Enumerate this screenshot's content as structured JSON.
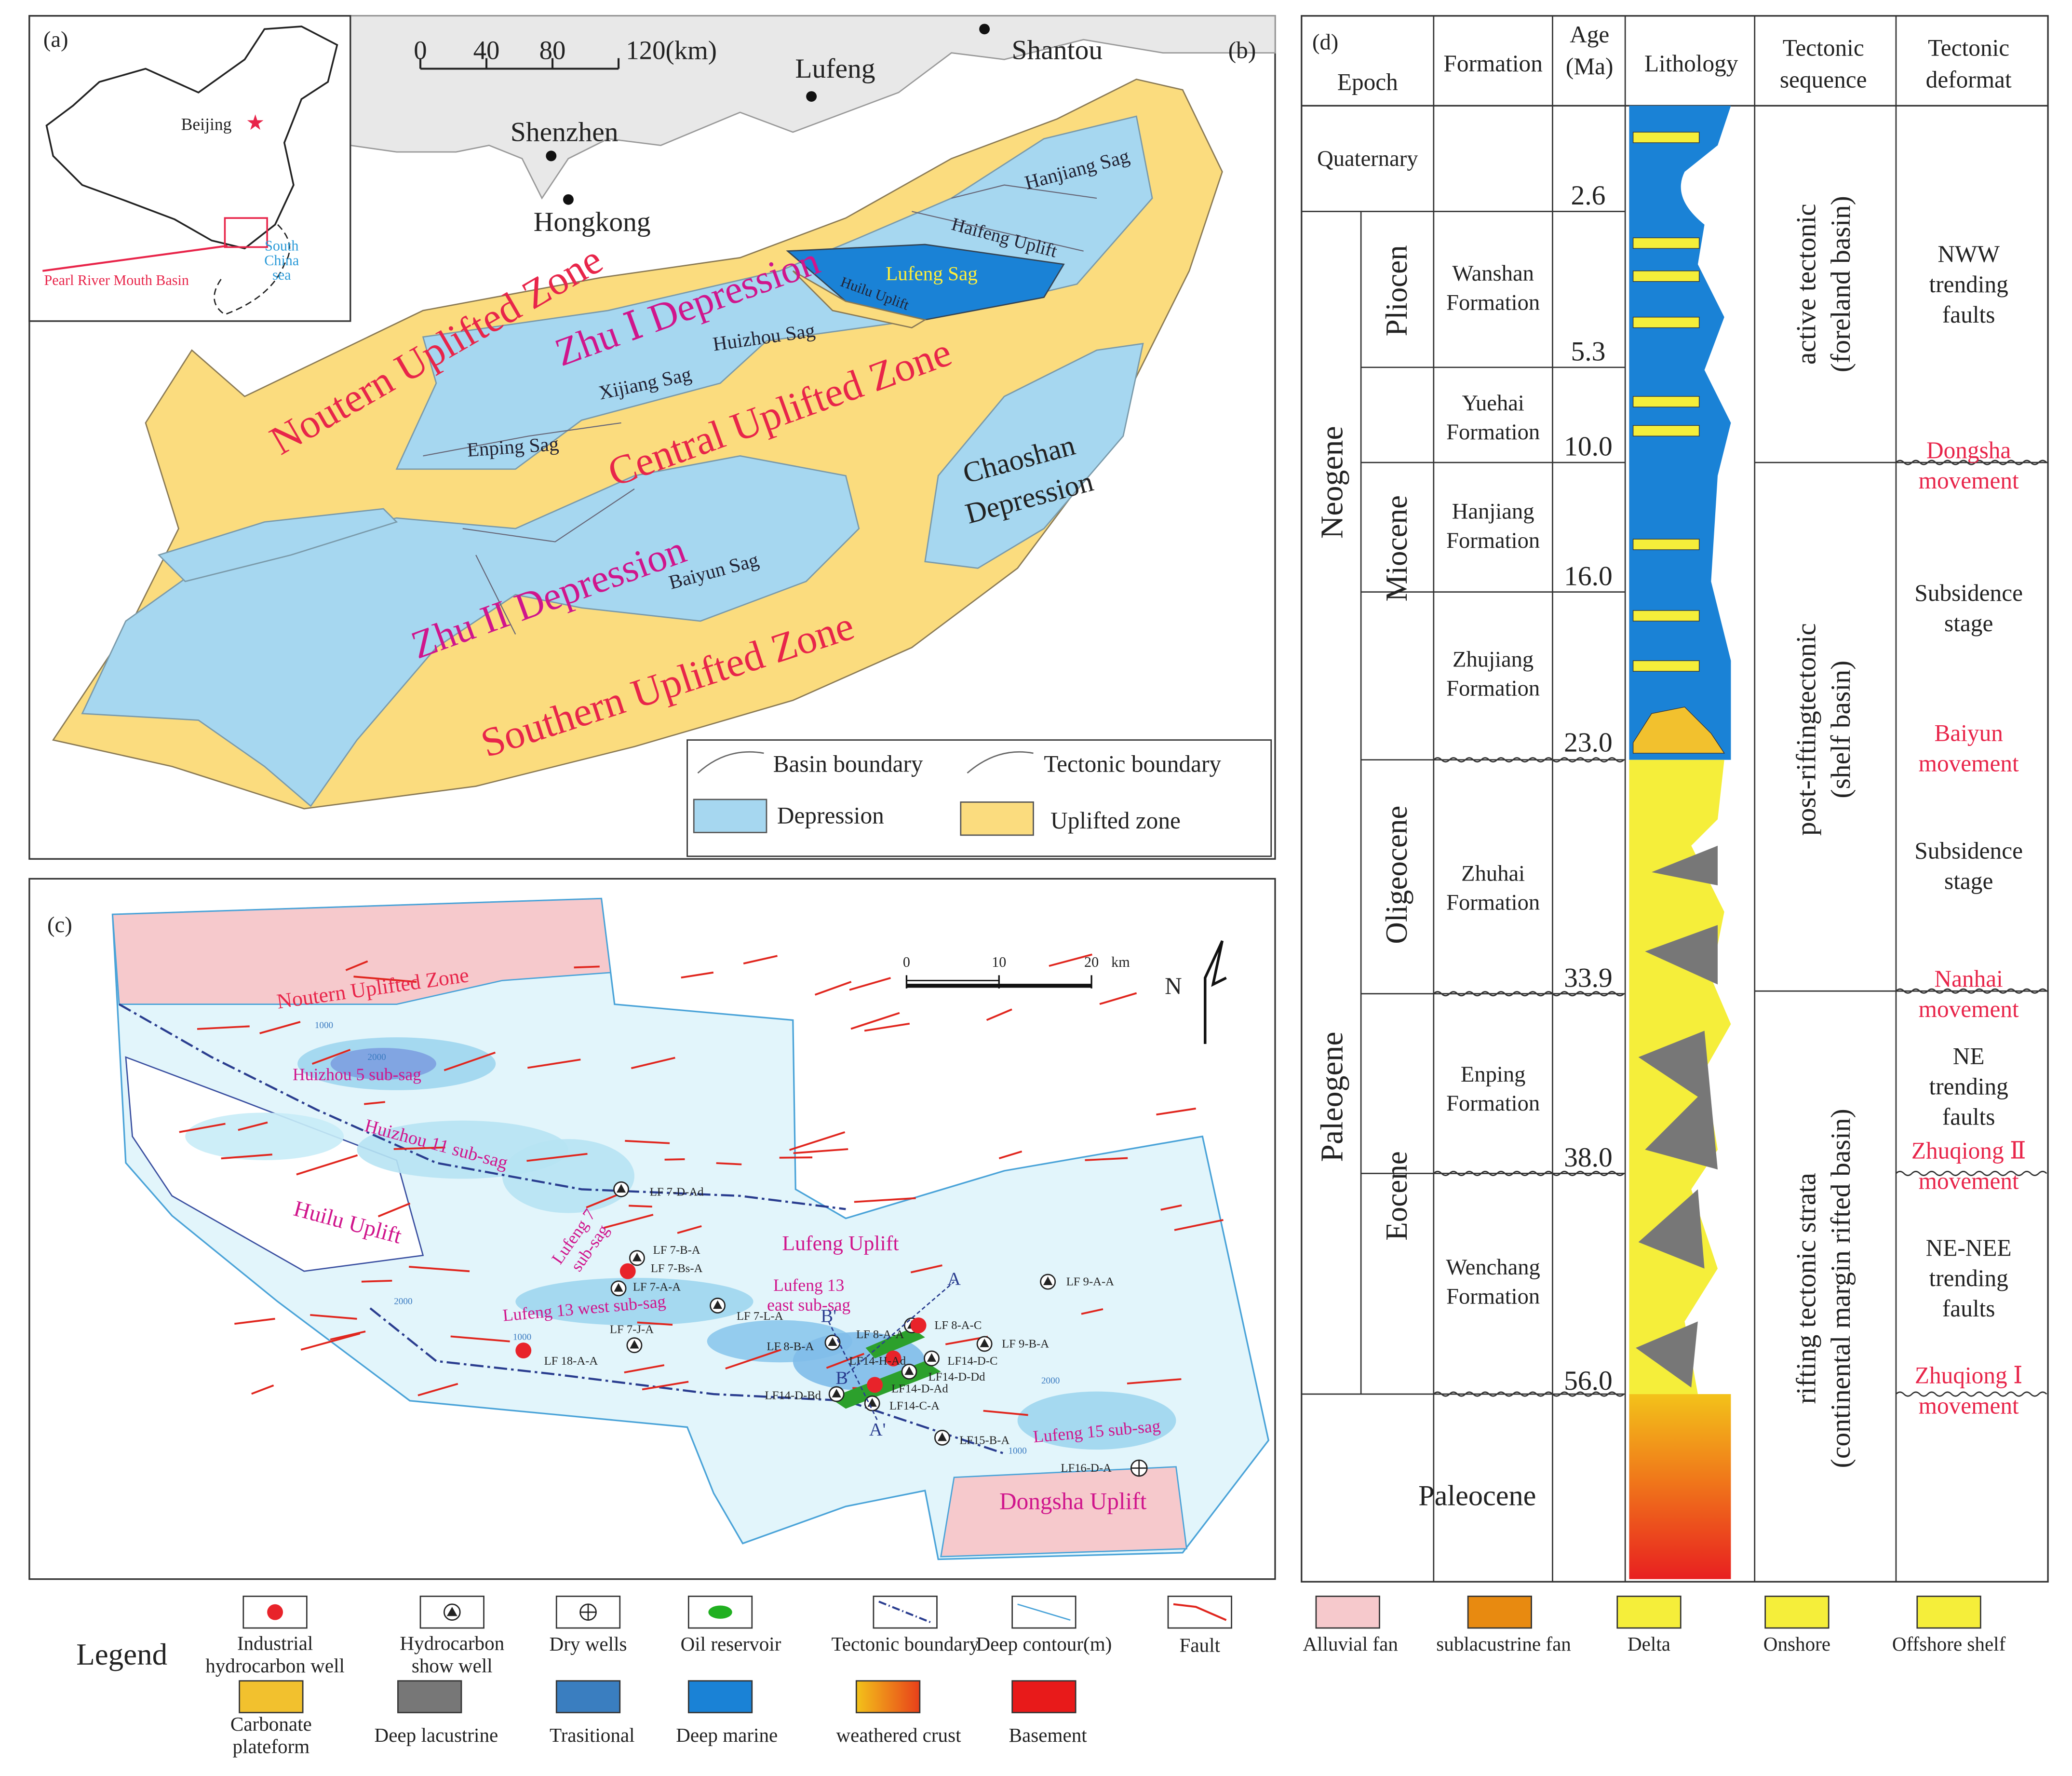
{
  "panel_a": {
    "label": "(a)",
    "capital": "Beijing",
    "basin": "Pearl River Mouth Basin",
    "sea": "South\nChina\nsea"
  },
  "panel_b": {
    "label": "(b)",
    "scale": [
      "0",
      "40",
      "80",
      "120(km)"
    ],
    "cities": [
      "Shantou",
      "Lufeng",
      "Shenzhen",
      "Hongkong"
    ],
    "zones": [
      "Noutern Uplifted Zone",
      "Central Uplifted Zone",
      "Southern Uplifted Zone",
      "Zhu Ⅰ Depression",
      "Zhu II Depression",
      "Chaoshan\nDepression"
    ],
    "sags": [
      "Hanjiang Sag",
      "Haifeng Uplift",
      "Lufeng Sag",
      "Huilu Uplift",
      "Huizhou Sag",
      "Xijiang Sag",
      "Enping Sag",
      "Baiyun Sag"
    ],
    "legend": [
      "Basin boundary",
      "Tectonic boundary",
      "Depression",
      "Uplifted zone"
    ]
  },
  "panel_c": {
    "label": "(c)",
    "scale": [
      "0",
      "10",
      "20",
      "km"
    ],
    "north": "N",
    "areas": [
      "Noutern Uplifted Zone",
      "Huizhou 5 sub-sag",
      "Huizhou 11 sub-sag",
      "Huilu Uplift",
      "Lufeng 7\nsub-sag",
      "Lufeng Uplift",
      "Lufeng 13\neast sub-sag",
      "Lufeng 13 west sub-sag",
      "Lufeng 15 sub-sag",
      "Dongsha Uplift"
    ],
    "wells": [
      "LF 7-D-Ad",
      "LF 7-B-A",
      "LF 7-Bs-A",
      "LF 7-A-A",
      "LF 7-L-A",
      "LF 7-J-A",
      "LF 18-A-A",
      "LF 8-A-A",
      "LF 8-B-A",
      "LF 9-A-A",
      "LF 9-B-A",
      "LF 8-A-C",
      "LF14-H-Ad",
      "LF14-D-C",
      "LF14-D-Dd",
      "LF14-D-Ad",
      "LF14-D-Bd",
      "LF14-C-A",
      "LF15-B-A",
      "LF16-D-A"
    ],
    "section": [
      "A",
      "A'",
      "B",
      "B'"
    ],
    "contours": [
      "1000",
      "2000",
      "2000",
      "1000",
      "2000",
      "1000"
    ]
  },
  "panel_d": {
    "label": "(d)",
    "headers": [
      "Epoch",
      "Formation",
      "Age\n(Ma)",
      "Lithology",
      "Tectonic\nsequence",
      "Tectonic\ndeformat"
    ],
    "periods": [
      "Neogene",
      "Paleogene"
    ],
    "epochs": [
      "Quaternary",
      "Pliocen",
      "Miocene",
      "Oligeocene",
      "Eocene",
      "Paleocene"
    ],
    "formations": [
      "Wanshan\nFormation",
      "Yuehai\nFormation",
      "Hanjiang\nFormation",
      "Zhujiang\nFormation",
      "Zhuhai\nFormation",
      "Enping\nFormation",
      "Wenchang\nFormation"
    ],
    "ages": [
      "2.6",
      "5.3",
      "10.0",
      "16.0",
      "23.0",
      "33.9",
      "38.0",
      "56.0"
    ],
    "sequences": [
      "active tectonic\n(foreland basin)",
      "post-riftingtectonic\n(shelf basin)",
      "rifting tectonic strata\n(continental margin rifted basin)"
    ],
    "deformation": [
      "NWW\ntrending\nfaults",
      "Subsidence\nstage",
      "Subsidence\nstage",
      "NE\ntrending\nfaults",
      "NE-NEE\ntrending\nfaults"
    ],
    "movements": [
      "Dongsha\nmovement",
      "Baiyun\nmovement",
      "Nanhai\nmovement",
      "Zhuqiong Ⅱ\nmovement",
      "Zhuqiong Ⅰ\nmovement"
    ]
  },
  "legend": {
    "title": "Legend",
    "items": [
      "Industrial\nhydrocarbon well",
      "Hydrocarbon\nshow well",
      "Dry wells",
      "Oil reservoir",
      "Tectonic boundary",
      "Deep contour(m)",
      "Fault",
      "Alluvial fan",
      "sublacustrine fan",
      "Delta",
      "Onshore",
      "Offshore shelf",
      "Carbonate\nplateform",
      "Deep lacustrine",
      "Trasitional",
      "Deep marine",
      "weathered crust",
      "Basement"
    ]
  }
}
